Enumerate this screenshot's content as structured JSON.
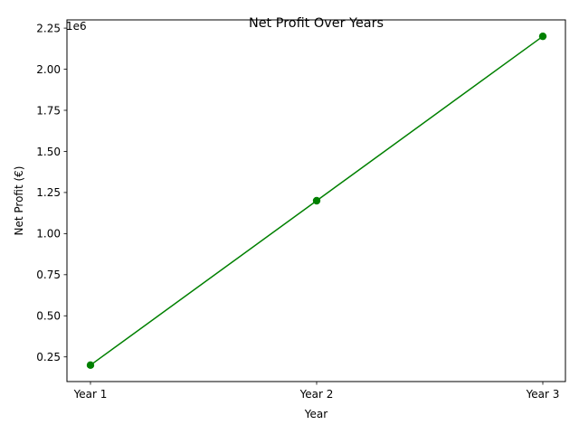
{
  "chart_data": {
    "type": "line",
    "title": "Net Profit Over Years",
    "xlabel": "Year",
    "ylabel": "Net Profit (€)",
    "y_offset_label": "1e6",
    "categories": [
      "Year 1",
      "Year 2",
      "Year 3"
    ],
    "series": [
      {
        "values": [
          200000,
          1200000,
          2200000
        ],
        "color": "#008000",
        "marker": "circle"
      }
    ],
    "ylim": [
      100000,
      2300000
    ],
    "yticks": [
      250000,
      500000,
      750000,
      1000000,
      1250000,
      1500000,
      1750000,
      2000000,
      2250000
    ],
    "ytick_labels": [
      "0.25",
      "0.50",
      "0.75",
      "1.00",
      "1.25",
      "1.50",
      "1.75",
      "2.00",
      "2.25"
    ],
    "grid": false,
    "legend": "none"
  }
}
